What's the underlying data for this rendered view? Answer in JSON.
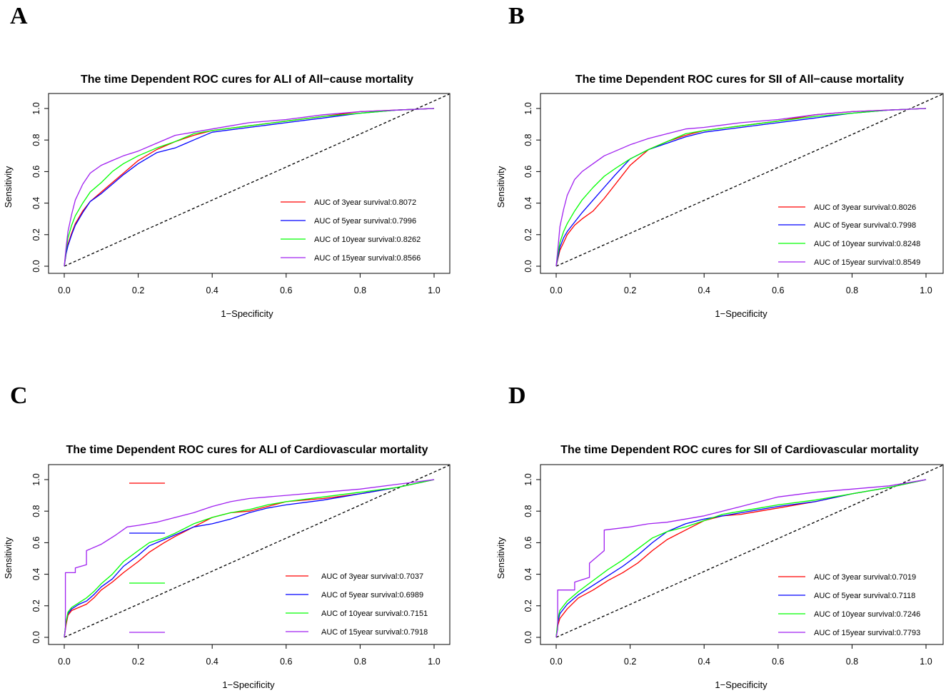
{
  "chart_data": [
    {
      "panel": "A",
      "type": "line",
      "title": "The time Dependent ROC cures for ALI of All−cause mortality",
      "xlabel": "1−Specificity",
      "ylabel": "Sensitivity",
      "xlim": [
        0,
        1
      ],
      "ylim": [
        0,
        1
      ],
      "xticks": [
        "0.0",
        "0.2",
        "0.4",
        "0.6",
        "0.8",
        "1.0"
      ],
      "yticks": [
        "0.0",
        "0.2",
        "0.4",
        "0.6",
        "0.8",
        "1.0"
      ],
      "reference_line": "diagonal",
      "legend_position": "bottom-right",
      "series": [
        {
          "name": "AUC of 3year survival:0.8072",
          "color": "#ff0000",
          "x": [
            0,
            0.005,
            0.01,
            0.02,
            0.03,
            0.05,
            0.07,
            0.1,
            0.13,
            0.16,
            0.2,
            0.25,
            0.3,
            0.35,
            0.4,
            0.5,
            0.6,
            0.7,
            0.8,
            0.9,
            1.0
          ],
          "y": [
            0,
            0.08,
            0.14,
            0.21,
            0.27,
            0.35,
            0.41,
            0.47,
            0.53,
            0.59,
            0.67,
            0.74,
            0.79,
            0.83,
            0.86,
            0.89,
            0.92,
            0.95,
            0.98,
            0.99,
            1.0
          ]
        },
        {
          "name": "AUC of 5year survival:0.7996",
          "color": "#0000ff",
          "x": [
            0,
            0.005,
            0.01,
            0.02,
            0.03,
            0.05,
            0.07,
            0.1,
            0.13,
            0.16,
            0.2,
            0.25,
            0.3,
            0.35,
            0.4,
            0.5,
            0.6,
            0.7,
            0.8,
            0.9,
            1.0
          ],
          "y": [
            0,
            0.08,
            0.13,
            0.2,
            0.26,
            0.34,
            0.41,
            0.46,
            0.52,
            0.58,
            0.65,
            0.72,
            0.75,
            0.8,
            0.85,
            0.88,
            0.91,
            0.94,
            0.97,
            0.99,
            1.0
          ]
        },
        {
          "name": "AUC of 10year survival:0.8262",
          "color": "#00ff00",
          "x": [
            0,
            0.005,
            0.01,
            0.02,
            0.03,
            0.05,
            0.07,
            0.1,
            0.13,
            0.16,
            0.2,
            0.25,
            0.3,
            0.35,
            0.4,
            0.5,
            0.6,
            0.7,
            0.8,
            0.9,
            1.0
          ],
          "y": [
            0,
            0.1,
            0.18,
            0.26,
            0.32,
            0.4,
            0.47,
            0.53,
            0.6,
            0.65,
            0.7,
            0.75,
            0.79,
            0.84,
            0.86,
            0.89,
            0.92,
            0.95,
            0.97,
            0.99,
            1.0
          ]
        },
        {
          "name": "AUC of 15year survival:0.8566",
          "color": "#a020f0",
          "x": [
            0,
            0.005,
            0.01,
            0.02,
            0.03,
            0.05,
            0.07,
            0.1,
            0.13,
            0.16,
            0.2,
            0.25,
            0.3,
            0.35,
            0.4,
            0.5,
            0.6,
            0.7,
            0.8,
            0.9,
            1.0
          ],
          "y": [
            0,
            0.12,
            0.22,
            0.33,
            0.42,
            0.52,
            0.59,
            0.64,
            0.67,
            0.7,
            0.73,
            0.78,
            0.83,
            0.85,
            0.87,
            0.91,
            0.93,
            0.96,
            0.98,
            0.99,
            1.0
          ]
        }
      ]
    },
    {
      "panel": "B",
      "type": "line",
      "title": "The time Dependent ROC cures for SII of All−cause mortality",
      "xlabel": "1−Specificity",
      "ylabel": "Sensitivity",
      "xlim": [
        0,
        1
      ],
      "ylim": [
        0,
        1
      ],
      "xticks": [
        "0.0",
        "0.2",
        "0.4",
        "0.6",
        "0.8",
        "1.0"
      ],
      "yticks": [
        "0.0",
        "0.2",
        "0.4",
        "0.6",
        "0.8",
        "1.0"
      ],
      "reference_line": "diagonal",
      "legend_position": "bottom-right",
      "series": [
        {
          "name": "AUC of 3year survival:0.8026",
          "color": "#ff0000",
          "x": [
            0,
            0.005,
            0.01,
            0.02,
            0.03,
            0.05,
            0.07,
            0.1,
            0.13,
            0.16,
            0.2,
            0.25,
            0.3,
            0.35,
            0.4,
            0.5,
            0.6,
            0.7,
            0.8,
            0.9,
            1.0
          ],
          "y": [
            0,
            0.05,
            0.1,
            0.15,
            0.2,
            0.26,
            0.3,
            0.35,
            0.43,
            0.52,
            0.64,
            0.74,
            0.79,
            0.83,
            0.86,
            0.89,
            0.92,
            0.96,
            0.98,
            0.99,
            1.0
          ]
        },
        {
          "name": "AUC of 5year survival:0.7998",
          "color": "#0000ff",
          "x": [
            0,
            0.005,
            0.01,
            0.02,
            0.03,
            0.05,
            0.07,
            0.1,
            0.13,
            0.16,
            0.2,
            0.25,
            0.3,
            0.35,
            0.4,
            0.5,
            0.6,
            0.7,
            0.8,
            0.9,
            1.0
          ],
          "y": [
            0,
            0.06,
            0.12,
            0.18,
            0.22,
            0.28,
            0.34,
            0.42,
            0.5,
            0.58,
            0.68,
            0.74,
            0.78,
            0.82,
            0.85,
            0.88,
            0.91,
            0.94,
            0.97,
            0.99,
            1.0
          ]
        },
        {
          "name": "AUC of 10year survival:0.8248",
          "color": "#00ff00",
          "x": [
            0,
            0.005,
            0.01,
            0.02,
            0.03,
            0.05,
            0.07,
            0.1,
            0.13,
            0.16,
            0.2,
            0.25,
            0.3,
            0.35,
            0.4,
            0.5,
            0.6,
            0.7,
            0.8,
            0.9,
            1.0
          ],
          "y": [
            0,
            0.08,
            0.15,
            0.22,
            0.27,
            0.35,
            0.42,
            0.5,
            0.57,
            0.62,
            0.68,
            0.74,
            0.79,
            0.84,
            0.86,
            0.89,
            0.92,
            0.95,
            0.97,
            0.99,
            1.0
          ]
        },
        {
          "name": "AUC of 15year survival:0.8549",
          "color": "#a020f0",
          "x": [
            0,
            0.005,
            0.01,
            0.02,
            0.03,
            0.05,
            0.07,
            0.1,
            0.13,
            0.16,
            0.2,
            0.25,
            0.3,
            0.35,
            0.4,
            0.5,
            0.6,
            0.7,
            0.8,
            0.9,
            1.0
          ],
          "y": [
            0,
            0.12,
            0.25,
            0.36,
            0.45,
            0.55,
            0.6,
            0.65,
            0.7,
            0.73,
            0.77,
            0.81,
            0.84,
            0.87,
            0.88,
            0.91,
            0.93,
            0.96,
            0.98,
            0.99,
            1.0
          ]
        }
      ]
    },
    {
      "panel": "C",
      "type": "line",
      "title": "The time Dependent ROC cures for ALI of Cardiovascular mortality",
      "xlabel": "1−Specificity",
      "ylabel": "Sensitivity",
      "xlim": [
        0,
        1
      ],
      "ylim": [
        0,
        1
      ],
      "xticks": [
        "0.0",
        "0.2",
        "0.4",
        "0.6",
        "0.8",
        "1.0"
      ],
      "yticks": [
        "0.0",
        "0.2",
        "0.4",
        "0.6",
        "0.8",
        "1.0"
      ],
      "reference_line": "diagonal",
      "legend_position": "bottom-right",
      "series": [
        {
          "name": "AUC of 3year survival:0.7037",
          "color": "#ff0000",
          "x": [
            0,
            0.005,
            0.01,
            0.02,
            0.04,
            0.06,
            0.08,
            0.1,
            0.13,
            0.16,
            0.2,
            0.23,
            0.27,
            0.3,
            0.35,
            0.4,
            0.45,
            0.5,
            0.55,
            0.6,
            0.7,
            0.8,
            0.9,
            1.0
          ],
          "y": [
            0,
            0.08,
            0.14,
            0.17,
            0.19,
            0.21,
            0.25,
            0.3,
            0.35,
            0.41,
            0.48,
            0.54,
            0.6,
            0.64,
            0.7,
            0.76,
            0.79,
            0.8,
            0.83,
            0.86,
            0.88,
            0.91,
            0.95,
            1.0
          ]
        },
        {
          "name": "AUC of 5year survival:0.6989",
          "color": "#0000ff",
          "x": [
            0,
            0.005,
            0.01,
            0.02,
            0.04,
            0.06,
            0.08,
            0.1,
            0.13,
            0.16,
            0.2,
            0.23,
            0.27,
            0.3,
            0.35,
            0.4,
            0.45,
            0.5,
            0.55,
            0.6,
            0.7,
            0.8,
            0.9,
            1.0
          ],
          "y": [
            0,
            0.1,
            0.15,
            0.18,
            0.21,
            0.23,
            0.27,
            0.32,
            0.37,
            0.45,
            0.52,
            0.58,
            0.62,
            0.65,
            0.7,
            0.72,
            0.75,
            0.79,
            0.82,
            0.84,
            0.87,
            0.91,
            0.95,
            1.0
          ]
        },
        {
          "name": "AUC of 10year survival:0.7151",
          "color": "#00ff00",
          "x": [
            0,
            0.005,
            0.01,
            0.02,
            0.04,
            0.06,
            0.08,
            0.1,
            0.13,
            0.16,
            0.2,
            0.23,
            0.27,
            0.3,
            0.35,
            0.4,
            0.45,
            0.5,
            0.55,
            0.6,
            0.7,
            0.8,
            0.9,
            1.0
          ],
          "y": [
            0,
            0.1,
            0.16,
            0.19,
            0.22,
            0.25,
            0.29,
            0.34,
            0.4,
            0.48,
            0.55,
            0.6,
            0.63,
            0.66,
            0.72,
            0.76,
            0.79,
            0.81,
            0.84,
            0.86,
            0.89,
            0.92,
            0.95,
            1.0
          ]
        },
        {
          "name": "AUC of 15year survival:0.7918",
          "color": "#a020f0",
          "x": [
            0,
            0.003,
            0.003,
            0.03,
            0.03,
            0.06,
            0.06,
            0.1,
            0.14,
            0.17,
            0.2,
            0.25,
            0.3,
            0.35,
            0.4,
            0.45,
            0.5,
            0.55,
            0.6,
            0.7,
            0.8,
            0.9,
            1.0
          ],
          "y": [
            0,
            0.05,
            0.41,
            0.41,
            0.44,
            0.46,
            0.55,
            0.59,
            0.65,
            0.7,
            0.71,
            0.73,
            0.76,
            0.79,
            0.83,
            0.86,
            0.88,
            0.89,
            0.9,
            0.92,
            0.94,
            0.97,
            1.0
          ]
        }
      ]
    },
    {
      "panel": "D",
      "type": "line",
      "title": "The time Dependent ROC cures for SII of Cardiovascular mortality",
      "xlabel": "1−Specificity",
      "ylabel": "Sensitivity",
      "xlim": [
        0,
        1
      ],
      "ylim": [
        0,
        1
      ],
      "xticks": [
        "0.0",
        "0.2",
        "0.4",
        "0.6",
        "0.8",
        "1.0"
      ],
      "yticks": [
        "0.0",
        "0.2",
        "0.4",
        "0.6",
        "0.8",
        "1.0"
      ],
      "reference_line": "diagonal",
      "legend_position": "bottom-right",
      "series": [
        {
          "name": "AUC of 3year survival:0.7019",
          "color": "#ff0000",
          "x": [
            0,
            0.005,
            0.01,
            0.03,
            0.06,
            0.1,
            0.14,
            0.18,
            0.22,
            0.26,
            0.3,
            0.35,
            0.4,
            0.45,
            0.5,
            0.55,
            0.6,
            0.7,
            0.8,
            0.9,
            1.0
          ],
          "y": [
            0,
            0.08,
            0.12,
            0.18,
            0.25,
            0.3,
            0.36,
            0.41,
            0.47,
            0.55,
            0.62,
            0.68,
            0.74,
            0.77,
            0.78,
            0.8,
            0.82,
            0.86,
            0.91,
            0.95,
            1.0
          ]
        },
        {
          "name": "AUC of 5year survival:0.7118",
          "color": "#0000ff",
          "x": [
            0,
            0.005,
            0.01,
            0.03,
            0.06,
            0.1,
            0.14,
            0.18,
            0.22,
            0.26,
            0.3,
            0.35,
            0.4,
            0.45,
            0.5,
            0.55,
            0.6,
            0.7,
            0.8,
            0.9,
            1.0
          ],
          "y": [
            0,
            0.1,
            0.15,
            0.21,
            0.27,
            0.33,
            0.39,
            0.45,
            0.52,
            0.6,
            0.67,
            0.72,
            0.75,
            0.77,
            0.79,
            0.81,
            0.83,
            0.86,
            0.91,
            0.95,
            1.0
          ]
        },
        {
          "name": "AUC of 10year survival:0.7246",
          "color": "#00ff00",
          "x": [
            0,
            0.005,
            0.01,
            0.03,
            0.06,
            0.1,
            0.14,
            0.18,
            0.22,
            0.26,
            0.3,
            0.35,
            0.4,
            0.45,
            0.5,
            0.55,
            0.6,
            0.7,
            0.8,
            0.9,
            1.0
          ],
          "y": [
            0,
            0.12,
            0.17,
            0.23,
            0.29,
            0.36,
            0.43,
            0.49,
            0.56,
            0.63,
            0.67,
            0.7,
            0.74,
            0.78,
            0.8,
            0.82,
            0.84,
            0.87,
            0.91,
            0.95,
            1.0
          ]
        },
        {
          "name": "AUC of 15year survival:0.7793",
          "color": "#a020f0",
          "x": [
            0,
            0.004,
            0.004,
            0.05,
            0.05,
            0.09,
            0.09,
            0.13,
            0.13,
            0.2,
            0.25,
            0.3,
            0.4,
            0.5,
            0.6,
            0.7,
            0.8,
            0.9,
            1.0
          ],
          "y": [
            0,
            0.05,
            0.3,
            0.3,
            0.35,
            0.38,
            0.47,
            0.55,
            0.68,
            0.7,
            0.72,
            0.73,
            0.77,
            0.83,
            0.89,
            0.92,
            0.94,
            0.96,
            1.0
          ]
        }
      ]
    }
  ],
  "panels": [
    {
      "label": "A"
    },
    {
      "label": "B"
    },
    {
      "label": "C"
    },
    {
      "label": "D"
    }
  ]
}
